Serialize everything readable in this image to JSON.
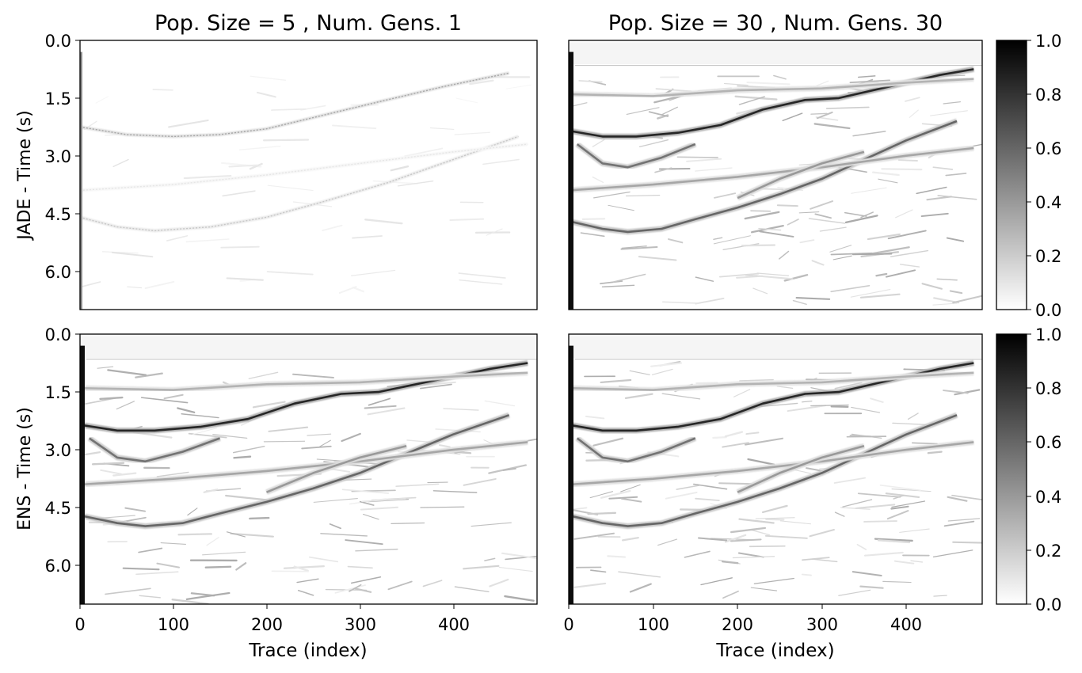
{
  "figure": {
    "colorbar_ticks": [
      "0.0",
      "0.2",
      "0.4",
      "0.6",
      "0.8",
      "1.0"
    ]
  },
  "chart_data": [
    {
      "type": "heatmap",
      "title": "Pop. Size = 5 , Num. Gens. 1",
      "xlabel": "",
      "ylabel": "JADE - Time (s)",
      "xlim": [
        0,
        490
      ],
      "ylim": [
        7.0,
        0.0
      ],
      "x_ticks": [],
      "y_ticks": [
        "0.0",
        "1.5",
        "3.0",
        "4.5",
        "6.0"
      ],
      "colormap": "gray_r",
      "clim": [
        0.0,
        1.0
      ],
      "intensity": "weak",
      "reflectors": [
        {
          "x": [
            0,
            50,
            100,
            150,
            200,
            260,
            320,
            390,
            460
          ],
          "t": [
            2.25,
            2.45,
            2.5,
            2.45,
            2.3,
            1.95,
            1.6,
            1.2,
            0.85
          ],
          "strength": 0.35
        },
        {
          "x": [
            0,
            40,
            80,
            140,
            200,
            260,
            330,
            400,
            470
          ],
          "t": [
            4.6,
            4.85,
            4.95,
            4.85,
            4.6,
            4.2,
            3.7,
            3.1,
            2.5
          ],
          "strength": 0.22
        },
        {
          "x": [
            0,
            100,
            200,
            300,
            400,
            480
          ],
          "t": [
            3.9,
            3.75,
            3.5,
            3.2,
            2.9,
            2.7
          ],
          "strength": 0.1
        }
      ]
    },
    {
      "type": "heatmap",
      "title": "Pop. Size = 30 , Num. Gens. 30",
      "xlabel": "",
      "ylabel": "",
      "xlim": [
        0,
        490
      ],
      "ylim": [
        7.0,
        0.0
      ],
      "x_ticks": [],
      "y_ticks": [],
      "colormap": "gray_r",
      "clim": [
        0.0,
        1.0
      ],
      "intensity": "strong",
      "reflectors": [
        {
          "x": [
            0,
            40,
            80,
            130,
            180,
            230,
            280,
            320,
            380,
            440,
            480
          ],
          "t": [
            2.35,
            2.5,
            2.5,
            2.4,
            2.2,
            1.8,
            1.55,
            1.5,
            1.2,
            0.9,
            0.75
          ],
          "strength": 0.85
        },
        {
          "x": [
            0,
            40,
            70,
            110,
            150,
            200,
            250,
            300,
            350,
            400,
            460
          ],
          "t": [
            4.7,
            4.9,
            4.98,
            4.9,
            4.65,
            4.35,
            4.0,
            3.6,
            3.1,
            2.6,
            2.1
          ],
          "strength": 0.6
        },
        {
          "x": [
            10,
            40,
            70,
            110,
            150
          ],
          "t": [
            2.7,
            3.2,
            3.3,
            3.05,
            2.7
          ],
          "strength": 0.55
        },
        {
          "x": [
            0,
            100,
            200,
            300,
            400,
            480
          ],
          "t": [
            3.9,
            3.75,
            3.55,
            3.3,
            3.0,
            2.8
          ],
          "strength": 0.35
        },
        {
          "x": [
            0,
            100,
            200,
            300,
            400,
            480
          ],
          "t": [
            1.4,
            1.45,
            1.3,
            1.25,
            1.1,
            1.0
          ],
          "strength": 0.3
        },
        {
          "x": [
            200,
            250,
            300,
            350
          ],
          "t": [
            4.1,
            3.6,
            3.2,
            2.9
          ],
          "strength": 0.4
        }
      ]
    },
    {
      "type": "heatmap",
      "title": "",
      "xlabel": "Trace (index)",
      "ylabel": "ENS - Time (s)",
      "xlim": [
        0,
        490
      ],
      "ylim": [
        7.0,
        0.0
      ],
      "x_ticks": [
        "0",
        "100",
        "200",
        "300",
        "400"
      ],
      "y_ticks": [
        "0.0",
        "1.5",
        "3.0",
        "4.5",
        "6.0"
      ],
      "colormap": "gray_r",
      "clim": [
        0.0,
        1.0
      ],
      "intensity": "strong",
      "reflectors": [
        {
          "x": [
            0,
            40,
            80,
            130,
            180,
            230,
            280,
            320,
            380,
            440,
            480
          ],
          "t": [
            2.35,
            2.5,
            2.5,
            2.4,
            2.2,
            1.8,
            1.55,
            1.5,
            1.2,
            0.9,
            0.75
          ],
          "strength": 0.85
        },
        {
          "x": [
            0,
            40,
            70,
            110,
            150,
            200,
            250,
            300,
            350,
            400,
            460
          ],
          "t": [
            4.7,
            4.9,
            4.98,
            4.9,
            4.65,
            4.35,
            4.0,
            3.6,
            3.1,
            2.6,
            2.1
          ],
          "strength": 0.6
        },
        {
          "x": [
            10,
            40,
            70,
            110,
            150
          ],
          "t": [
            2.7,
            3.2,
            3.3,
            3.05,
            2.7
          ],
          "strength": 0.55
        },
        {
          "x": [
            0,
            100,
            200,
            300,
            400,
            480
          ],
          "t": [
            3.9,
            3.75,
            3.55,
            3.3,
            3.0,
            2.8
          ],
          "strength": 0.35
        },
        {
          "x": [
            0,
            100,
            200,
            300,
            400,
            480
          ],
          "t": [
            1.4,
            1.45,
            1.3,
            1.25,
            1.1,
            1.0
          ],
          "strength": 0.3
        },
        {
          "x": [
            200,
            250,
            300,
            350
          ],
          "t": [
            4.1,
            3.6,
            3.2,
            2.9
          ],
          "strength": 0.4
        }
      ]
    },
    {
      "type": "heatmap",
      "title": "",
      "xlabel": "Trace (index)",
      "ylabel": "",
      "xlim": [
        0,
        490
      ],
      "ylim": [
        7.0,
        0.0
      ],
      "x_ticks": [
        "0",
        "100",
        "200",
        "300",
        "400"
      ],
      "y_ticks": [],
      "colormap": "gray_r",
      "clim": [
        0.0,
        1.0
      ],
      "intensity": "strong",
      "reflectors": [
        {
          "x": [
            0,
            40,
            80,
            130,
            180,
            230,
            280,
            320,
            380,
            440,
            480
          ],
          "t": [
            2.35,
            2.5,
            2.5,
            2.4,
            2.2,
            1.8,
            1.55,
            1.5,
            1.2,
            0.9,
            0.75
          ],
          "strength": 0.85
        },
        {
          "x": [
            0,
            40,
            70,
            110,
            150,
            200,
            250,
            300,
            350,
            400,
            460
          ],
          "t": [
            4.7,
            4.9,
            4.98,
            4.9,
            4.65,
            4.35,
            4.0,
            3.6,
            3.1,
            2.6,
            2.1
          ],
          "strength": 0.6
        },
        {
          "x": [
            10,
            40,
            70,
            110,
            150
          ],
          "t": [
            2.7,
            3.2,
            3.3,
            3.05,
            2.7
          ],
          "strength": 0.55
        },
        {
          "x": [
            0,
            100,
            200,
            300,
            400,
            480
          ],
          "t": [
            3.9,
            3.75,
            3.55,
            3.3,
            3.0,
            2.8
          ],
          "strength": 0.35
        },
        {
          "x": [
            0,
            100,
            200,
            300,
            400,
            480
          ],
          "t": [
            1.4,
            1.45,
            1.3,
            1.25,
            1.1,
            1.0
          ],
          "strength": 0.3
        },
        {
          "x": [
            200,
            250,
            300,
            350
          ],
          "t": [
            4.1,
            3.6,
            3.2,
            2.9
          ],
          "strength": 0.4
        }
      ]
    }
  ]
}
